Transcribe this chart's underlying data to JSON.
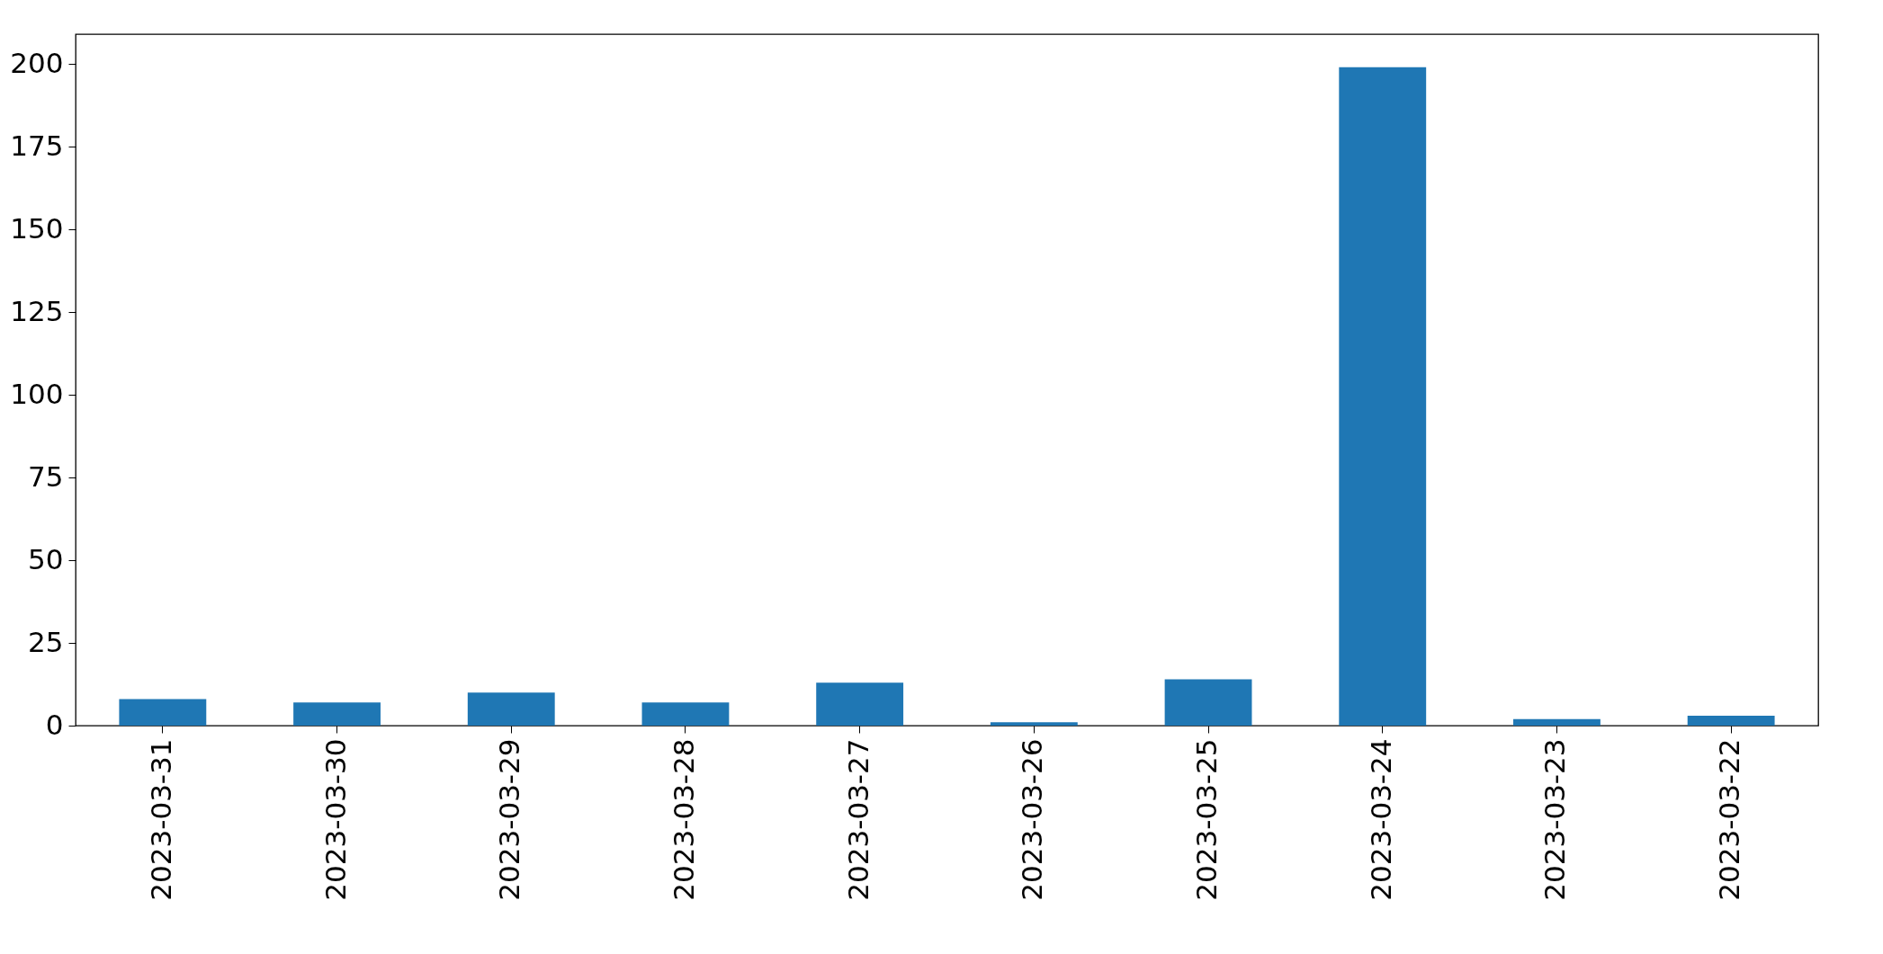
{
  "chart_data": {
    "type": "bar",
    "categories": [
      "2023-03-31",
      "2023-03-30",
      "2023-03-29",
      "2023-03-28",
      "2023-03-27",
      "2023-03-26",
      "2023-03-25",
      "2023-03-24",
      "2023-03-23",
      "2023-03-22"
    ],
    "values": [
      8,
      7,
      10,
      7,
      13,
      1,
      14,
      199,
      2,
      3
    ],
    "color": "#1f77b4",
    "ylim": [
      0,
      209
    ],
    "yticks": [
      0,
      25,
      50,
      75,
      100,
      125,
      150,
      175,
      200
    ],
    "grid": false
  }
}
